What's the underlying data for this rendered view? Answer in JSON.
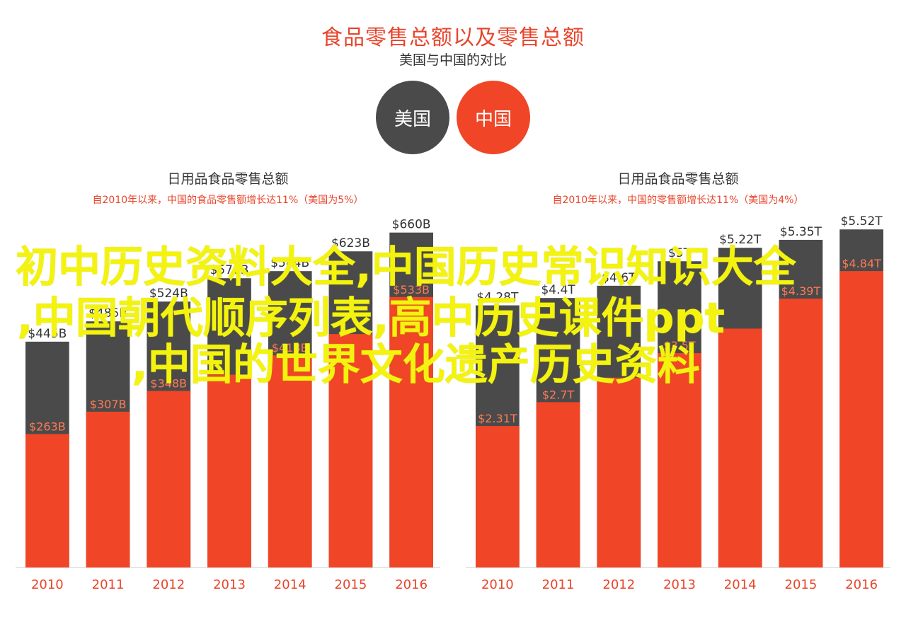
{
  "header": {
    "title": "食品零售总额以及零售总额",
    "subtitle": "美国与中国的对比",
    "legend_us": "美国",
    "legend_cn": "中国"
  },
  "colors": {
    "us": "#4a4a4a",
    "cn": "#f04526",
    "axis_text": "#e8452c"
  },
  "watermark": {
    "line1": "初中历史资料大全,中国历史常识知识大全",
    "line2": ",中国朝代顺序列表,高中历史课件ppt",
    "line3": ",中国的世界文化遗产历史资料"
  },
  "chart_data": [
    {
      "type": "bar",
      "title": "日用品食品零售总额",
      "note": "自2010年以来，中国的食品零售额增长达11%（美国为5%）",
      "categories": [
        "2010",
        "2011",
        "2012",
        "2013",
        "2014",
        "2015",
        "2016"
      ],
      "series": [
        {
          "name": "美国",
          "values": [
            445,
            485,
            524,
            570,
            584,
            623,
            660
          ],
          "labels": [
            "$445B",
            "$485B",
            "$524B",
            "$570B",
            "$584B",
            "$623B",
            "$660B"
          ]
        },
        {
          "name": "中国",
          "values": [
            263,
            307,
            348,
            380,
            418,
            460,
            533
          ],
          "labels": [
            "$263B",
            "$307B",
            "$348B",
            "",
            "$418B",
            "",
            "$533B"
          ]
        }
      ],
      "ylim": [
        0,
        700
      ]
    },
    {
      "type": "bar",
      "title": "日用品食品零售总额",
      "note": "自2010年以来，中国的零售额增长达11%（美国为4%）",
      "categories": [
        "2010",
        "2011",
        "2012",
        "2013",
        "2014",
        "2015",
        "2016"
      ],
      "series": [
        {
          "name": "美国",
          "values": [
            4.28,
            4.4,
            4.6,
            5.0,
            5.22,
            5.35,
            5.52
          ],
          "labels": [
            "$4.28T",
            "$4.4T",
            "$4.6T",
            "$5T",
            "$5.22T",
            "$5.35T",
            "$5.52T"
          ]
        },
        {
          "name": "中国",
          "values": [
            2.31,
            2.7,
            3.1,
            3.5,
            3.9,
            4.39,
            4.84
          ],
          "labels": [
            "$2.31T",
            "$2.7T",
            "",
            "$3.5T",
            "",
            "$4.39T",
            "$4.84T"
          ]
        }
      ],
      "ylim": [
        0,
        5.8
      ]
    }
  ]
}
